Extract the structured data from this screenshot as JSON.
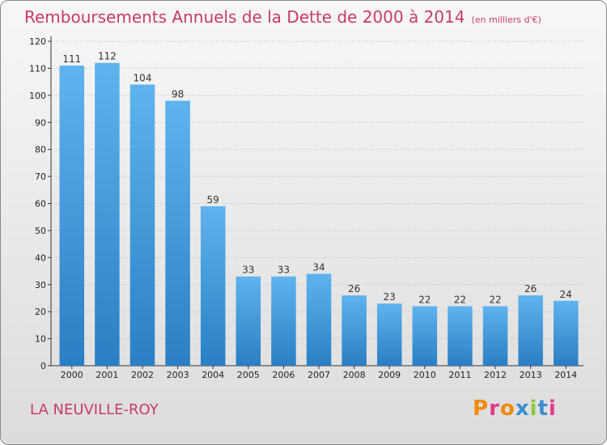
{
  "header": {
    "title": "Remboursements Annuels de la Dette de 2000 à 2014",
    "subtitle": "(en milliers d'€)"
  },
  "footer": {
    "town": "LA NEUVILLE-ROY",
    "logo_text": "Proxiti",
    "logo_colors": [
      "#f08a00",
      "#e23a8a",
      "#f08a00",
      "#3a8ed0",
      "#8bc53f",
      "#3a8ed0",
      "#e23a8a"
    ]
  },
  "colors": {
    "bar_top": "#5fb3ee",
    "bar_bottom": "#2a7fc4",
    "title": "#c83a6a",
    "grid": "#bdbdbd"
  },
  "chart_data": {
    "type": "bar",
    "title": "Remboursements Annuels de la Dette de 2000 à 2014",
    "subtitle": "(en milliers d'€)",
    "categories": [
      "2000",
      "2001",
      "2002",
      "2003",
      "2004",
      "2005",
      "2006",
      "2007",
      "2008",
      "2009",
      "2010",
      "2011",
      "2012",
      "2013",
      "2014"
    ],
    "values": [
      111,
      112,
      104,
      98,
      59,
      33,
      33,
      34,
      26,
      23,
      22,
      22,
      22,
      26,
      24
    ],
    "ylim": [
      0,
      120
    ],
    "yticks": [
      0,
      10,
      20,
      30,
      40,
      50,
      60,
      70,
      80,
      90,
      100,
      110,
      120
    ],
    "grid": true,
    "xlabel": "",
    "ylabel": ""
  }
}
